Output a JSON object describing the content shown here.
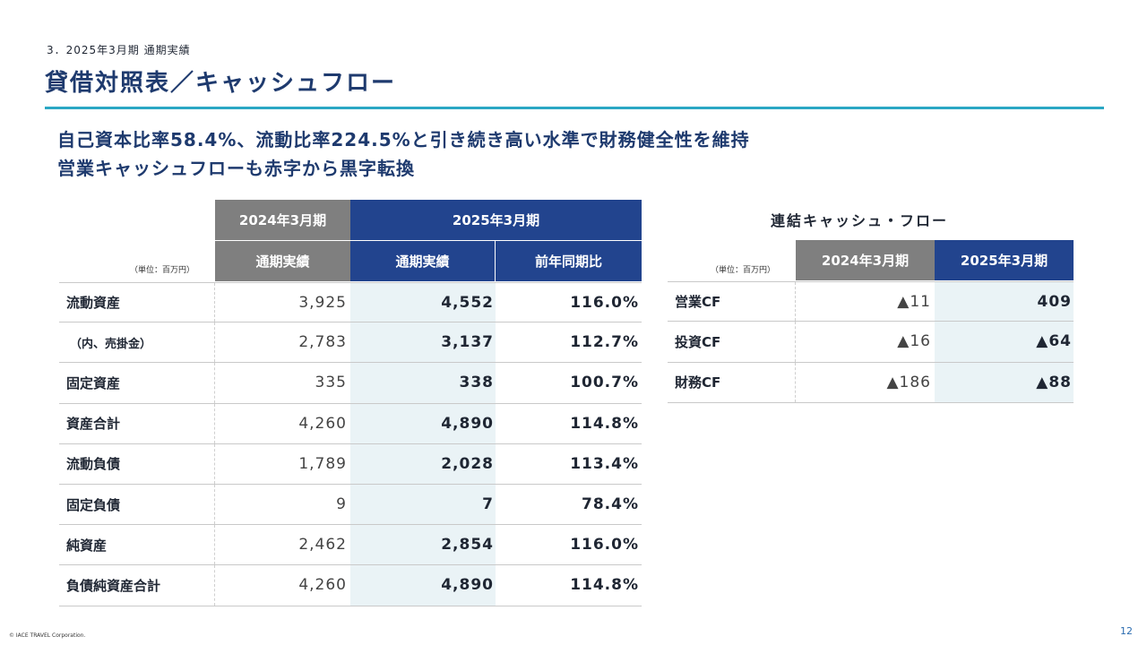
{
  "section_label": "3．2025年3月期 通期実績",
  "title": "貸借対照表／キャッシュフロー",
  "headline": [
    "自己資本比率58.4%、流動比率224.5%と引き続き高い水準で財務健全性を維持",
    "営業キャッシュフローも赤字から黒字転換"
  ],
  "balance_sheet": {
    "unit_note": "（単位：百万円）",
    "header_top": {
      "fy2024": "2024年3月期",
      "fy2025": "2025年3月期"
    },
    "header_sub": {
      "actual_2024": "通期実績",
      "actual_2025": "通期実績",
      "yoy": "前年同期比"
    },
    "rows": [
      {
        "label": "流動資産",
        "prev": "3,925",
        "cur": "4,552",
        "yoy": "116.0%"
      },
      {
        "label": "（内、売掛金）",
        "prev": "2,783",
        "cur": "3,137",
        "yoy": "112.7%"
      },
      {
        "label": "固定資産",
        "prev": "335",
        "cur": "338",
        "yoy": "100.7%"
      },
      {
        "label": "資産合計",
        "prev": "4,260",
        "cur": "4,890",
        "yoy": "114.8%"
      },
      {
        "label": "流動負債",
        "prev": "1,789",
        "cur": "2,028",
        "yoy": "113.4%"
      },
      {
        "label": "固定負債",
        "prev": "9",
        "cur": "7",
        "yoy": "78.4%"
      },
      {
        "label": "純資産",
        "prev": "2,462",
        "cur": "2,854",
        "yoy": "116.0%"
      },
      {
        "label": "負債純資産合計",
        "prev": "4,260",
        "cur": "4,890",
        "yoy": "114.8%"
      }
    ]
  },
  "cash_flow": {
    "title": "連結キャッシュ・フロー",
    "unit_note": "（単位：百万円）",
    "header": {
      "fy2024": "2024年3月期",
      "fy2025": "2025年3月期"
    },
    "rows": [
      {
        "label": "営業CF",
        "prev": "▲11",
        "cur": "409"
      },
      {
        "label": "投資CF",
        "prev": "▲16",
        "cur": "▲64"
      },
      {
        "label": "財務CF",
        "prev": "▲186",
        "cur": "▲88"
      }
    ]
  },
  "footer": {
    "copyright": "© IACE TRAVEL Corporation.",
    "page_number": "12"
  },
  "colors": {
    "title": "#1e3a6e",
    "accent_rule": "#2ba7c4",
    "header_gray": "#7f7f7f",
    "header_navy": "#22448e",
    "highlight_column": "#eaf3f6"
  }
}
